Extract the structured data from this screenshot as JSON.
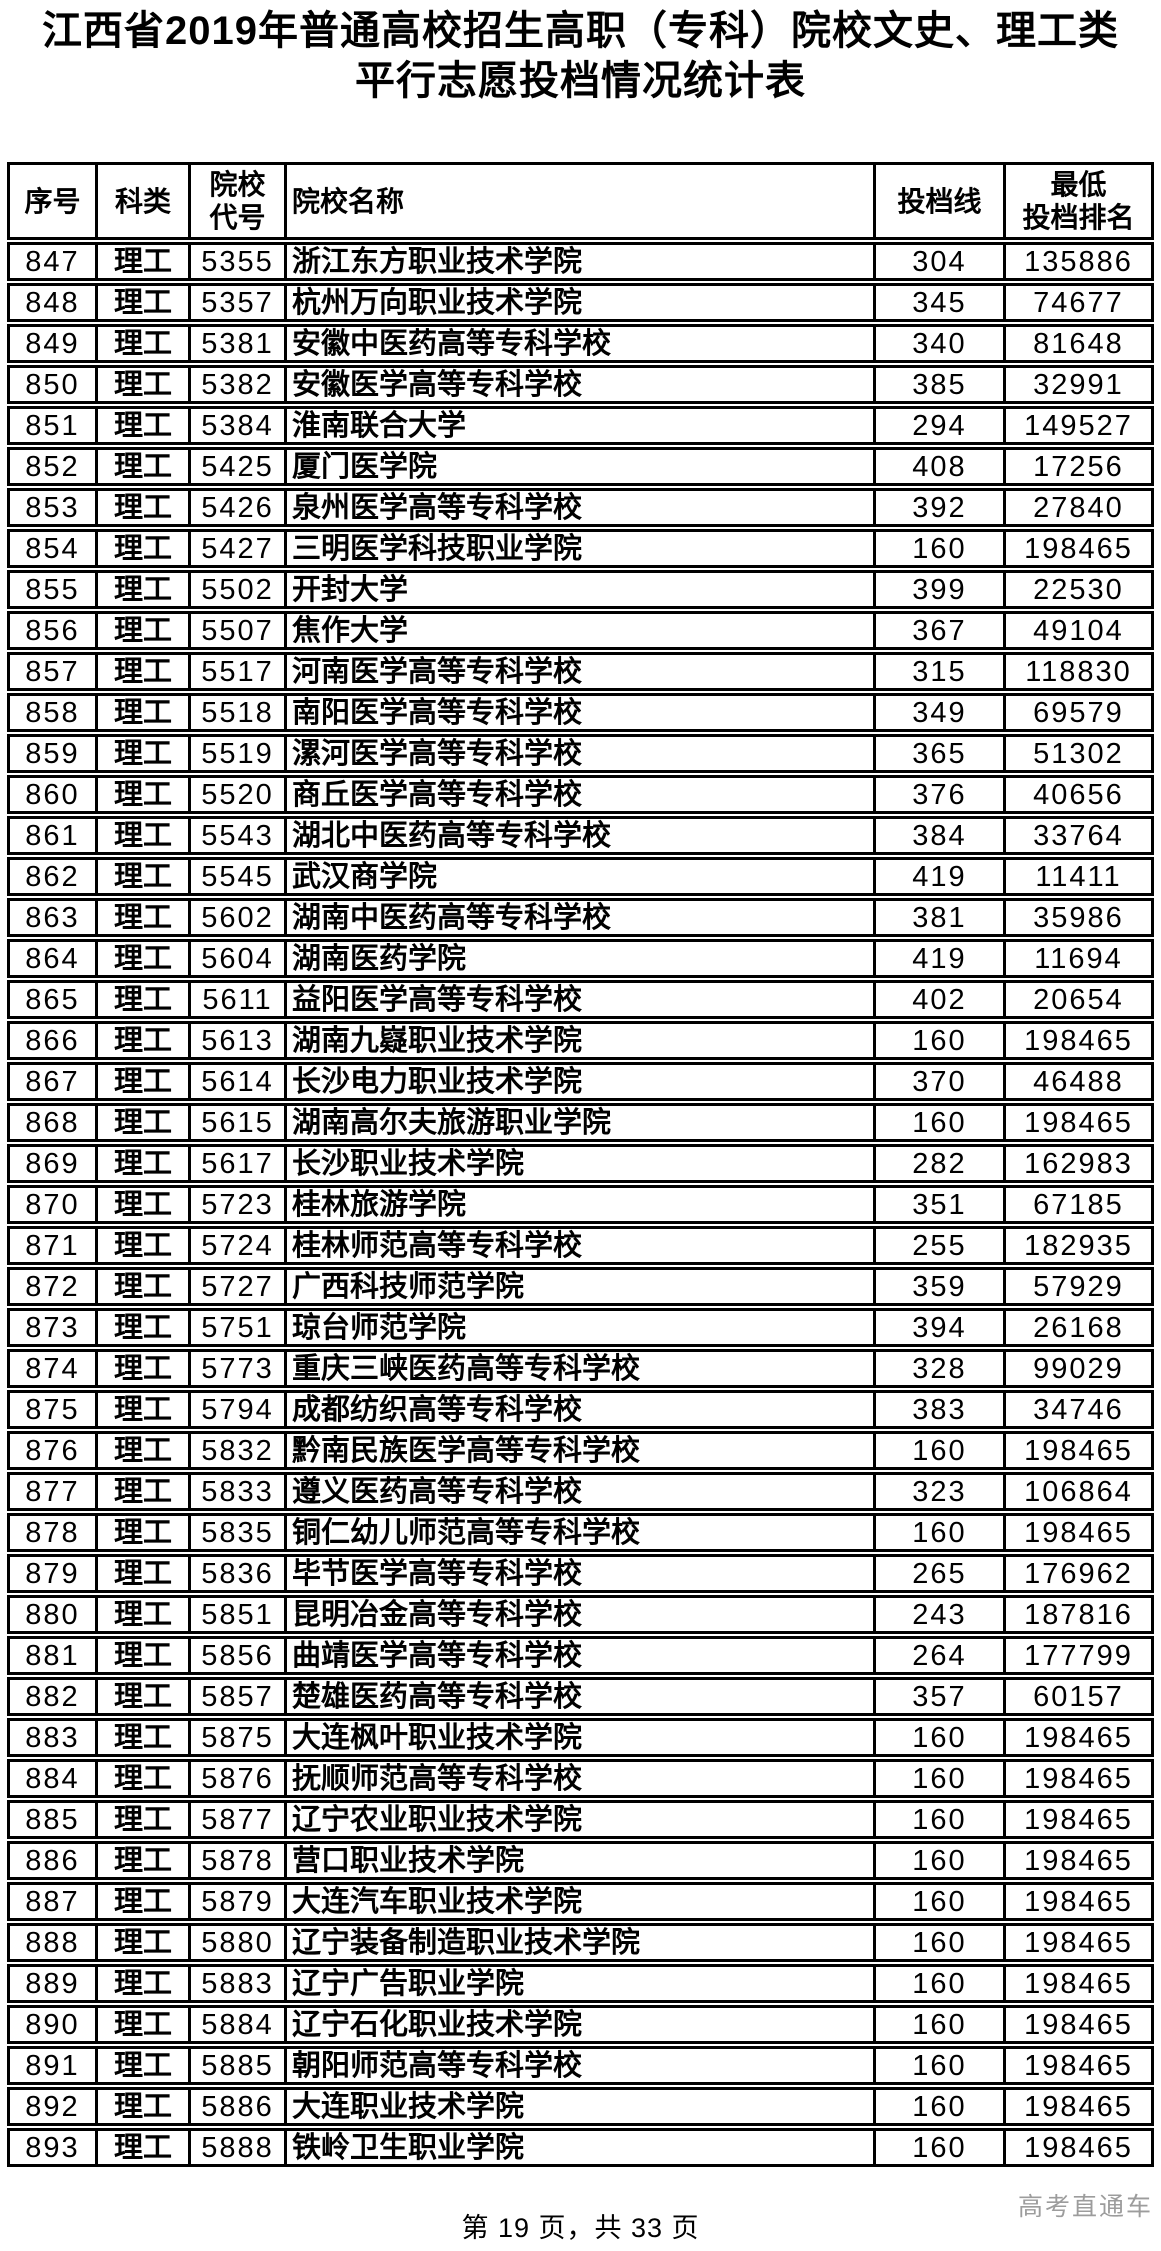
{
  "title": {
    "line1": "江西省2019年普通高校招生高职（专科）院校文史、理工类",
    "line2": "平行志愿投档情况统计表"
  },
  "colors": {
    "text": "#000000",
    "border": "#000000",
    "background": "#ffffff",
    "watermark": "#9c9c9c"
  },
  "table": {
    "columns": [
      {
        "key": "seq",
        "lines": [
          "序号"
        ]
      },
      {
        "key": "category",
        "lines": [
          "科类"
        ]
      },
      {
        "key": "code",
        "lines": [
          "院校",
          "代号"
        ]
      },
      {
        "key": "name",
        "lines": [
          "院校名称"
        ]
      },
      {
        "key": "cutoff",
        "lines": [
          "投档线"
        ]
      },
      {
        "key": "rank",
        "lines": [
          "最低",
          "投档排名"
        ]
      }
    ],
    "rows": [
      {
        "seq": "847",
        "category": "理工",
        "code": "5355",
        "name": "浙江东方职业技术学院",
        "cutoff": "304",
        "rank": "135886"
      },
      {
        "seq": "848",
        "category": "理工",
        "code": "5357",
        "name": "杭州万向职业技术学院",
        "cutoff": "345",
        "rank": "74677"
      },
      {
        "seq": "849",
        "category": "理工",
        "code": "5381",
        "name": "安徽中医药高等专科学校",
        "cutoff": "340",
        "rank": "81648"
      },
      {
        "seq": "850",
        "category": "理工",
        "code": "5382",
        "name": "安徽医学高等专科学校",
        "cutoff": "385",
        "rank": "32991"
      },
      {
        "seq": "851",
        "category": "理工",
        "code": "5384",
        "name": "淮南联合大学",
        "cutoff": "294",
        "rank": "149527"
      },
      {
        "seq": "852",
        "category": "理工",
        "code": "5425",
        "name": "厦门医学院",
        "cutoff": "408",
        "rank": "17256"
      },
      {
        "seq": "853",
        "category": "理工",
        "code": "5426",
        "name": "泉州医学高等专科学校",
        "cutoff": "392",
        "rank": "27840"
      },
      {
        "seq": "854",
        "category": "理工",
        "code": "5427",
        "name": "三明医学科技职业学院",
        "cutoff": "160",
        "rank": "198465"
      },
      {
        "seq": "855",
        "category": "理工",
        "code": "5502",
        "name": "开封大学",
        "cutoff": "399",
        "rank": "22530"
      },
      {
        "seq": "856",
        "category": "理工",
        "code": "5507",
        "name": "焦作大学",
        "cutoff": "367",
        "rank": "49104"
      },
      {
        "seq": "857",
        "category": "理工",
        "code": "5517",
        "name": "河南医学高等专科学校",
        "cutoff": "315",
        "rank": "118830"
      },
      {
        "seq": "858",
        "category": "理工",
        "code": "5518",
        "name": "南阳医学高等专科学校",
        "cutoff": "349",
        "rank": "69579"
      },
      {
        "seq": "859",
        "category": "理工",
        "code": "5519",
        "name": "漯河医学高等专科学校",
        "cutoff": "365",
        "rank": "51302"
      },
      {
        "seq": "860",
        "category": "理工",
        "code": "5520",
        "name": "商丘医学高等专科学校",
        "cutoff": "376",
        "rank": "40656"
      },
      {
        "seq": "861",
        "category": "理工",
        "code": "5543",
        "name": "湖北中医药高等专科学校",
        "cutoff": "384",
        "rank": "33764"
      },
      {
        "seq": "862",
        "category": "理工",
        "code": "5545",
        "name": "武汉商学院",
        "cutoff": "419",
        "rank": "11411"
      },
      {
        "seq": "863",
        "category": "理工",
        "code": "5602",
        "name": "湖南中医药高等专科学校",
        "cutoff": "381",
        "rank": "35986"
      },
      {
        "seq": "864",
        "category": "理工",
        "code": "5604",
        "name": "湖南医药学院",
        "cutoff": "419",
        "rank": "11694"
      },
      {
        "seq": "865",
        "category": "理工",
        "code": "5611",
        "name": "益阳医学高等专科学校",
        "cutoff": "402",
        "rank": "20654"
      },
      {
        "seq": "866",
        "category": "理工",
        "code": "5613",
        "name": "湖南九嶷职业技术学院",
        "cutoff": "160",
        "rank": "198465"
      },
      {
        "seq": "867",
        "category": "理工",
        "code": "5614",
        "name": "长沙电力职业技术学院",
        "cutoff": "370",
        "rank": "46488"
      },
      {
        "seq": "868",
        "category": "理工",
        "code": "5615",
        "name": "湖南高尔夫旅游职业学院",
        "cutoff": "160",
        "rank": "198465"
      },
      {
        "seq": "869",
        "category": "理工",
        "code": "5617",
        "name": "长沙职业技术学院",
        "cutoff": "282",
        "rank": "162983"
      },
      {
        "seq": "870",
        "category": "理工",
        "code": "5723",
        "name": "桂林旅游学院",
        "cutoff": "351",
        "rank": "67185"
      },
      {
        "seq": "871",
        "category": "理工",
        "code": "5724",
        "name": "桂林师范高等专科学校",
        "cutoff": "255",
        "rank": "182935"
      },
      {
        "seq": "872",
        "category": "理工",
        "code": "5727",
        "name": "广西科技师范学院",
        "cutoff": "359",
        "rank": "57929"
      },
      {
        "seq": "873",
        "category": "理工",
        "code": "5751",
        "name": "琼台师范学院",
        "cutoff": "394",
        "rank": "26168"
      },
      {
        "seq": "874",
        "category": "理工",
        "code": "5773",
        "name": "重庆三峡医药高等专科学校",
        "cutoff": "328",
        "rank": "99029"
      },
      {
        "seq": "875",
        "category": "理工",
        "code": "5794",
        "name": "成都纺织高等专科学校",
        "cutoff": "383",
        "rank": "34746"
      },
      {
        "seq": "876",
        "category": "理工",
        "code": "5832",
        "name": "黔南民族医学高等专科学校",
        "cutoff": "160",
        "rank": "198465"
      },
      {
        "seq": "877",
        "category": "理工",
        "code": "5833",
        "name": "遵义医药高等专科学校",
        "cutoff": "323",
        "rank": "106864"
      },
      {
        "seq": "878",
        "category": "理工",
        "code": "5835",
        "name": "铜仁幼儿师范高等专科学校",
        "cutoff": "160",
        "rank": "198465"
      },
      {
        "seq": "879",
        "category": "理工",
        "code": "5836",
        "name": "毕节医学高等专科学校",
        "cutoff": "265",
        "rank": "176962"
      },
      {
        "seq": "880",
        "category": "理工",
        "code": "5851",
        "name": "昆明冶金高等专科学校",
        "cutoff": "243",
        "rank": "187816"
      },
      {
        "seq": "881",
        "category": "理工",
        "code": "5856",
        "name": "曲靖医学高等专科学校",
        "cutoff": "264",
        "rank": "177799"
      },
      {
        "seq": "882",
        "category": "理工",
        "code": "5857",
        "name": "楚雄医药高等专科学校",
        "cutoff": "357",
        "rank": "60157"
      },
      {
        "seq": "883",
        "category": "理工",
        "code": "5875",
        "name": "大连枫叶职业技术学院",
        "cutoff": "160",
        "rank": "198465"
      },
      {
        "seq": "884",
        "category": "理工",
        "code": "5876",
        "name": "抚顺师范高等专科学校",
        "cutoff": "160",
        "rank": "198465"
      },
      {
        "seq": "885",
        "category": "理工",
        "code": "5877",
        "name": "辽宁农业职业技术学院",
        "cutoff": "160",
        "rank": "198465"
      },
      {
        "seq": "886",
        "category": "理工",
        "code": "5878",
        "name": "营口职业技术学院",
        "cutoff": "160",
        "rank": "198465"
      },
      {
        "seq": "887",
        "category": "理工",
        "code": "5879",
        "name": "大连汽车职业技术学院",
        "cutoff": "160",
        "rank": "198465"
      },
      {
        "seq": "888",
        "category": "理工",
        "code": "5880",
        "name": "辽宁装备制造职业技术学院",
        "cutoff": "160",
        "rank": "198465"
      },
      {
        "seq": "889",
        "category": "理工",
        "code": "5883",
        "name": "辽宁广告职业学院",
        "cutoff": "160",
        "rank": "198465"
      },
      {
        "seq": "890",
        "category": "理工",
        "code": "5884",
        "name": "辽宁石化职业技术学院",
        "cutoff": "160",
        "rank": "198465"
      },
      {
        "seq": "891",
        "category": "理工",
        "code": "5885",
        "name": "朝阳师范高等专科学校",
        "cutoff": "160",
        "rank": "198465"
      },
      {
        "seq": "892",
        "category": "理工",
        "code": "5886",
        "name": "大连职业技术学院",
        "cutoff": "160",
        "rank": "198465"
      },
      {
        "seq": "893",
        "category": "理工",
        "code": "5888",
        "name": "铁岭卫生职业学院",
        "cutoff": "160",
        "rank": "198465"
      }
    ]
  },
  "footer": {
    "page_text": "第 19 页，共 33 页",
    "watermark": "高考直通车"
  }
}
